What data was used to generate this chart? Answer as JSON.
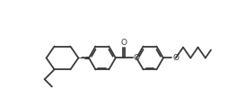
{
  "bg_color": "#ffffff",
  "line_color": "#3a3a3a",
  "line_width": 1.3,
  "figure_width": 2.73,
  "figure_height": 1.09,
  "dpi": 100,
  "xlim": [
    -0.5,
    10.5
  ],
  "ylim": [
    -2.0,
    2.2
  ]
}
